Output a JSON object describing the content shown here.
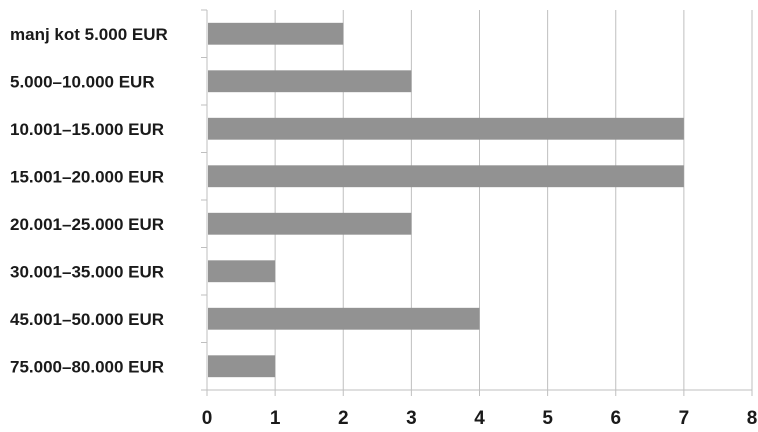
{
  "chart_data": {
    "type": "bar",
    "orientation": "horizontal",
    "title": "",
    "xlabel": "",
    "ylabel": "",
    "categories": [
      "manj kot 5.000 EUR",
      "5.000–10.000 EUR",
      "10.001–15.000 EUR",
      "15.001–20.000 EUR",
      "20.001–25.000 EUR",
      "30.001–35.000 EUR",
      "45.001–50.000 EUR",
      "75.000–80.000 EUR"
    ],
    "values": [
      2,
      3,
      7,
      7,
      3,
      1,
      4,
      1
    ],
    "xlim": [
      0,
      8
    ],
    "xticks": [
      "0",
      "1",
      "2",
      "3",
      "4",
      "5",
      "6",
      "7",
      "8"
    ],
    "grid": "vertical",
    "legend": "none",
    "bar_color": "#929292",
    "grid_color": "#bfbfbf"
  }
}
